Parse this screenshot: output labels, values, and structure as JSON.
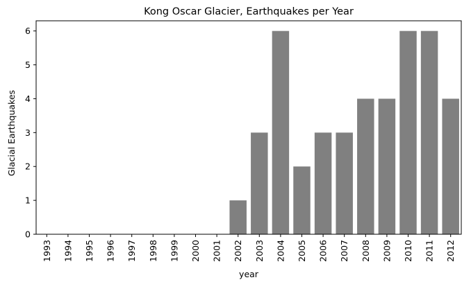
{
  "chart_data": {
    "type": "bar",
    "title": "Kong Oscar Glacier, Earthquakes per Year",
    "xlabel": "year",
    "ylabel": "Glacial Earthquakes",
    "categories": [
      "1993",
      "1994",
      "1995",
      "1996",
      "1997",
      "1998",
      "1999",
      "2000",
      "2001",
      "2002",
      "2003",
      "2004",
      "2005",
      "2006",
      "2007",
      "2008",
      "2009",
      "2010",
      "2011",
      "2012"
    ],
    "values": [
      0,
      0,
      0,
      0,
      0,
      0,
      0,
      0,
      0,
      1,
      3,
      6,
      2,
      3,
      3,
      4,
      4,
      6,
      6,
      4
    ],
    "ylim": [
      0,
      6.3
    ],
    "yticks": [
      0,
      1,
      2,
      3,
      4,
      5,
      6
    ],
    "grid": false,
    "legend": "none",
    "bar_color": "#808080"
  }
}
